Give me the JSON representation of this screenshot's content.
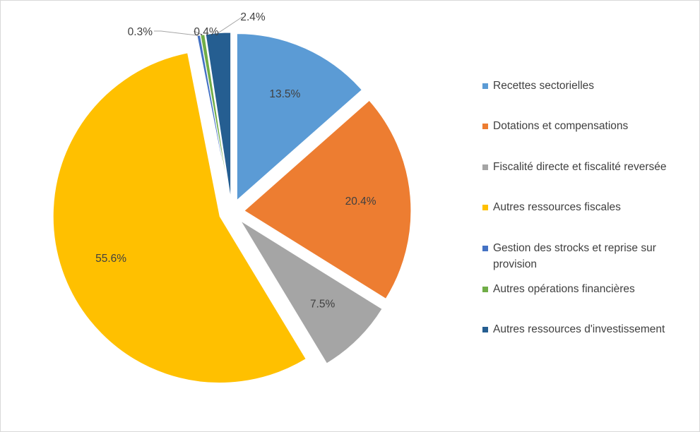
{
  "chart_data": {
    "type": "pie",
    "exploded": true,
    "title": "",
    "slices": [
      {
        "name": "Recettes sectorielles",
        "value": 13.5,
        "label": "13.5%",
        "color": "#5B9BD5"
      },
      {
        "name": "Dotations et compensations",
        "value": 20.4,
        "label": "20.4%",
        "color": "#ED7D31"
      },
      {
        "name": "Fiscalité directe et fiscalité reversée",
        "value": 7.5,
        "label": "7.5%",
        "color": "#A5A5A5"
      },
      {
        "name": "Autres ressources fiscales",
        "value": 55.6,
        "label": "55.6%",
        "color": "#FFC000"
      },
      {
        "name": "Gestion des strocks et reprise sur provision",
        "value": 0.3,
        "label": "0.3%",
        "color": "#4472C4"
      },
      {
        "name": "Autres opérations financières",
        "value": 0.4,
        "label": "0.4%",
        "color": "#70AD47"
      },
      {
        "name": "Autres ressources d'investissement",
        "value": 2.4,
        "label": "2.4%",
        "color": "#255E91"
      }
    ],
    "legend_position": "right"
  }
}
